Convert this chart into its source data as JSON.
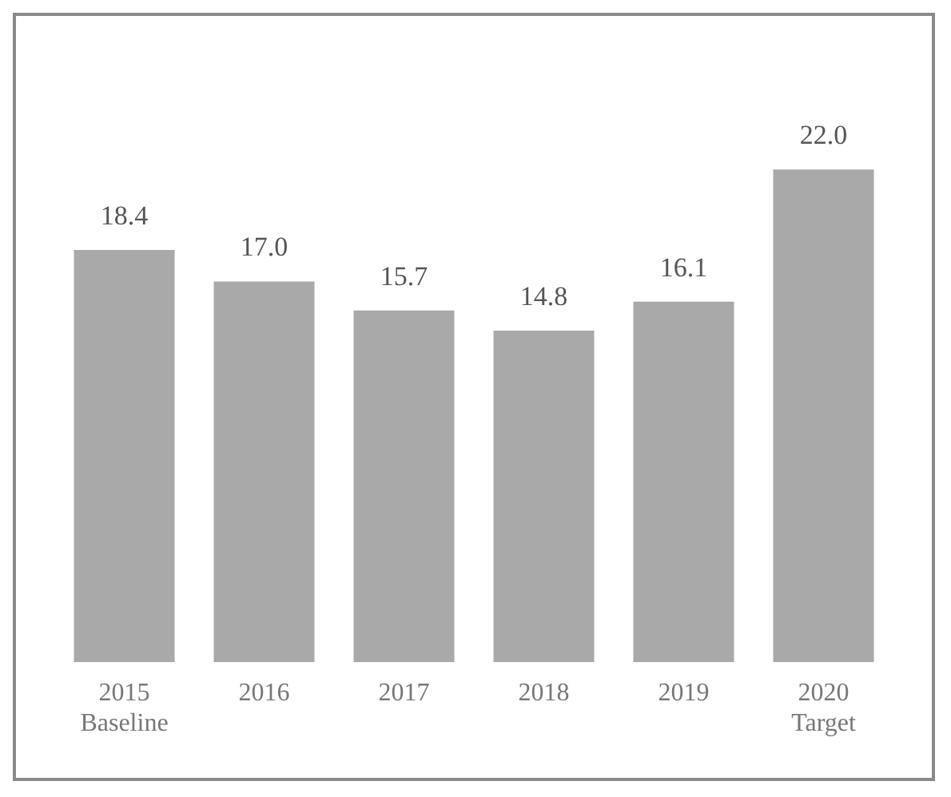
{
  "chart_data": {
    "type": "bar",
    "categories": [
      "2015\nBaseline",
      "2016",
      "2017",
      "2018",
      "2019",
      "2020\nTarget"
    ],
    "values": [
      18.4,
      17.0,
      15.7,
      14.8,
      16.1,
      22.0
    ],
    "color": "#a9a9a9",
    "value_labels": [
      "18.4",
      "17.0",
      "15.7",
      "14.8",
      "16.1",
      "22.0"
    ],
    "grid": false,
    "legend": false
  }
}
